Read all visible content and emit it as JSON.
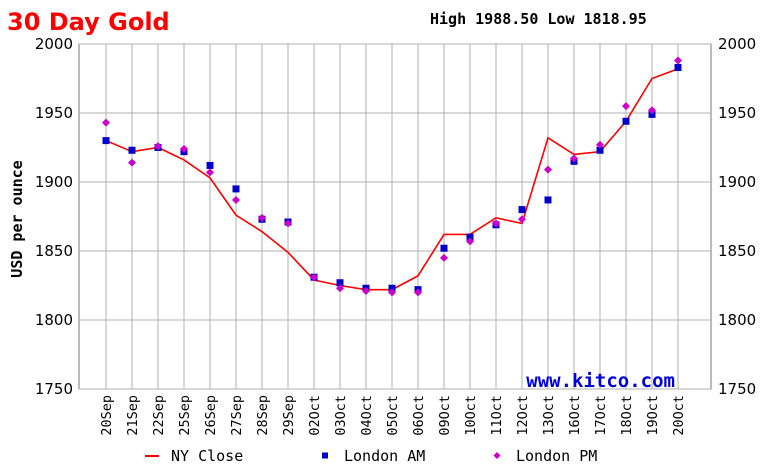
{
  "header": {
    "title": "30 Day Gold",
    "high_low": "High 1988.50 Low 1818.95"
  },
  "watermark": "www.kitco.com",
  "colors": {
    "title": "#ff0000",
    "watermark": "#0000dd",
    "ny_close": "#ff0000",
    "london_am": "#0000cc",
    "london_pm": "#cc00cc",
    "grid": "#b0b0b0",
    "plot_bg": "#ffffff",
    "frame": "#777777"
  },
  "chart_data": {
    "type": "line",
    "ylabel": "USD per ounce",
    "xlabel": "",
    "ylim": [
      1750,
      2000
    ],
    "yticks": [
      1750,
      1800,
      1850,
      1900,
      1950,
      2000
    ],
    "grid": true,
    "legend_position": "bottom",
    "categories": [
      "20Sep",
      "21Sep",
      "22Sep",
      "25Sep",
      "26Sep",
      "27Sep",
      "28Sep",
      "29Sep",
      "02Oct",
      "03Oct",
      "04Oct",
      "05Oct",
      "06Oct",
      "09Oct",
      "10Oct",
      "11Oct",
      "12Oct",
      "13Oct",
      "16Oct",
      "17Oct",
      "18Oct",
      "19Oct",
      "20Oct"
    ],
    "tick_labels": [
      "20Sep",
      "21Sep",
      "22Sep",
      "25Sep",
      "26Sep",
      "27Sep",
      "28Sep",
      "29Sep",
      "02Oct",
      "03Oct",
      "04Oct",
      "05Oct",
      "06Oct",
      "09Oct",
      "10Oct",
      "11Oct",
      "12Oct",
      "13Oct",
      "16Oct",
      "17Oct",
      "18Oct",
      "19Oct",
      "20Oct"
    ],
    "series": [
      {
        "name": "NY Close",
        "style": "line",
        "values": [
          1930,
          1922,
          1925,
          1916,
          1903,
          1876,
          1864,
          1849,
          1829,
          1825,
          1822,
          1822,
          1832,
          1862,
          1862,
          1874,
          1870,
          1932,
          1920,
          1922,
          1944,
          1975,
          1982
        ]
      },
      {
        "name": "London AM",
        "style": "square",
        "values": [
          1930,
          1923,
          1925,
          1922,
          1912,
          1895,
          1873,
          1871,
          1831,
          1827,
          1823,
          1823,
          1822,
          1852,
          1860,
          1869,
          1880,
          1887,
          1915,
          1923,
          1944,
          1949,
          1983
        ]
      },
      {
        "name": "London PM",
        "style": "diamond",
        "values": [
          1943,
          1914,
          1926,
          1924,
          1907,
          1887,
          1874,
          1870,
          1831,
          1823,
          1821,
          1820,
          1820,
          1845,
          1857,
          1870,
          1873,
          1909,
          1917,
          1927,
          1955,
          1952,
          1988
        ]
      }
    ]
  }
}
